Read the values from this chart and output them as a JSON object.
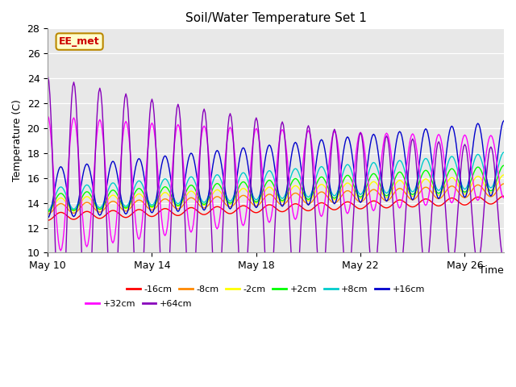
{
  "title": "Soil/Water Temperature Set 1",
  "xlabel": "Time",
  "ylabel": "Temperature (C)",
  "ylim": [
    10,
    28
  ],
  "xtick_positions": [
    0,
    4,
    8,
    12,
    16
  ],
  "xtick_labels": [
    "May 10",
    "May 14",
    "May 18",
    "May 22",
    "May 26"
  ],
  "xlim": [
    0,
    17.5
  ],
  "background_color": "#e8e8e8",
  "annotation_text": "EE_met",
  "annotation_bg": "#ffffcc",
  "annotation_border": "#bb8800",
  "annotation_text_color": "#cc0000",
  "series": [
    {
      "label": "-16cm",
      "color": "#ff0000",
      "base": 12.9,
      "amp_start": 0.3,
      "amp_end": 0.3,
      "phase": 0.75,
      "trend": 0.077
    },
    {
      "label": "-8cm",
      "color": "#ff8800",
      "base": 13.5,
      "amp_start": 0.4,
      "amp_end": 0.5,
      "phase": 0.75,
      "trend": 0.088
    },
    {
      "label": "-2cm",
      "color": "#ffff00",
      "base": 13.8,
      "amp_start": 0.55,
      "amp_end": 0.7,
      "phase": 0.75,
      "trend": 0.1
    },
    {
      "label": "+2cm",
      "color": "#00ff00",
      "base": 14.0,
      "amp_start": 0.7,
      "amp_end": 1.0,
      "phase": 0.75,
      "trend": 0.115
    },
    {
      "label": "+8cm",
      "color": "#00cccc",
      "base": 14.3,
      "amp_start": 0.9,
      "amp_end": 1.4,
      "phase": 0.75,
      "trend": 0.135
    },
    {
      "label": "+16cm",
      "color": "#0000cc",
      "base": 14.8,
      "amp_start": 2.0,
      "amp_end": 3.0,
      "phase": 0.75,
      "trend": 0.16
    },
    {
      "label": "+32cm",
      "color": "#ff00ff",
      "base": 15.5,
      "amp_start": 5.5,
      "amp_end": 2.5,
      "phase": 0.25,
      "trend": 0.08
    },
    {
      "label": "+64cm",
      "color": "#8800bb",
      "base": 13.2,
      "amp_start": 11.0,
      "amp_end": 4.5,
      "phase": 0.25,
      "trend": 0.04
    }
  ]
}
